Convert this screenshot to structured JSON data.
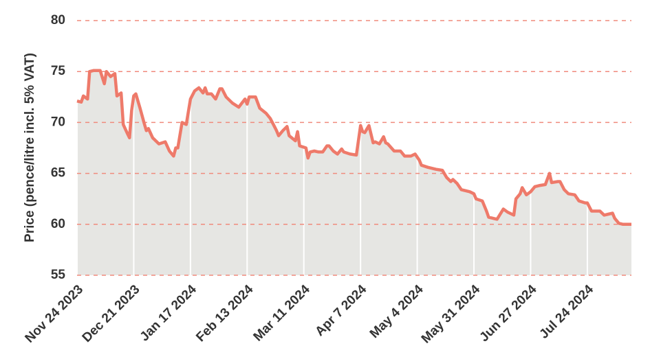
{
  "chart_data": {
    "type": "area",
    "y_label": "Price (pence/litre incl. 5% VAT)",
    "x": [
      "2023-11-24",
      "2023-11-26",
      "2023-11-27",
      "2023-11-29",
      "2023-11-30",
      "2023-12-02",
      "2023-12-05",
      "2023-12-07",
      "2023-12-08",
      "2023-12-10",
      "2023-12-12",
      "2023-12-13",
      "2023-12-15",
      "2023-12-16",
      "2023-12-18",
      "2023-12-19",
      "2023-12-20",
      "2023-12-21",
      "2023-12-22",
      "2023-12-24",
      "2023-12-26",
      "2023-12-27",
      "2023-12-28",
      "2023-12-30",
      "2024-01-02",
      "2024-01-05",
      "2024-01-07",
      "2024-01-09",
      "2024-01-10",
      "2024-01-11",
      "2024-01-13",
      "2024-01-15",
      "2024-01-17",
      "2024-01-19",
      "2024-01-21",
      "2024-01-23",
      "2024-01-24",
      "2024-01-25",
      "2024-01-27",
      "2024-01-29",
      "2024-01-31",
      "2024-02-01",
      "2024-02-03",
      "2024-02-06",
      "2024-02-09",
      "2024-02-12",
      "2024-02-13",
      "2024-02-14",
      "2024-02-17",
      "2024-02-19",
      "2024-02-22",
      "2024-02-24",
      "2024-02-26",
      "2024-02-27",
      "2024-02-28",
      "2024-03-01",
      "2024-03-03",
      "2024-03-04",
      "2024-03-07",
      "2024-03-08",
      "2024-03-09",
      "2024-03-12",
      "2024-03-13",
      "2024-03-14",
      "2024-03-16",
      "2024-03-18",
      "2024-03-20",
      "2024-03-22",
      "2024-03-23",
      "2024-03-25",
      "2024-03-27",
      "2024-03-29",
      "2024-03-30",
      "2024-04-02",
      "2024-04-05",
      "2024-04-07",
      "2024-04-08",
      "2024-04-09",
      "2024-04-11",
      "2024-04-13",
      "2024-04-14",
      "2024-04-16",
      "2024-04-18",
      "2024-04-19",
      "2024-04-20",
      "2024-04-23",
      "2024-04-26",
      "2024-04-28",
      "2024-05-01",
      "2024-05-03",
      "2024-05-05",
      "2024-05-06",
      "2024-05-09",
      "2024-05-13",
      "2024-05-16",
      "2024-05-18",
      "2024-05-20",
      "2024-05-21",
      "2024-05-23",
      "2024-05-25",
      "2024-05-29",
      "2024-05-31",
      "2024-06-01",
      "2024-06-04",
      "2024-06-06",
      "2024-06-07",
      "2024-06-11",
      "2024-06-14",
      "2024-06-16",
      "2024-06-19",
      "2024-06-20",
      "2024-06-22",
      "2024-06-23",
      "2024-06-25",
      "2024-06-27",
      "2024-06-29",
      "2024-07-01",
      "2024-07-04",
      "2024-07-06",
      "2024-07-07",
      "2024-07-10",
      "2024-07-11",
      "2024-07-13",
      "2024-07-15",
      "2024-07-18",
      "2024-07-20",
      "2024-07-23",
      "2024-07-24",
      "2024-07-26",
      "2024-07-30",
      "2024-08-01",
      "2024-08-03",
      "2024-08-05",
      "2024-08-06",
      "2024-08-08",
      "2024-08-10",
      "2024-08-14"
    ],
    "values": [
      72.1,
      72.0,
      72.6,
      72.3,
      75.0,
      75.1,
      75.1,
      73.8,
      75.0,
      74.5,
      74.8,
      72.6,
      72.9,
      69.8,
      68.9,
      68.5,
      71.2,
      72.6,
      72.8,
      71.4,
      69.9,
      69.2,
      69.4,
      68.5,
      67.9,
      68.1,
      67.2,
      66.7,
      67.5,
      67.5,
      70.0,
      69.8,
      72.3,
      73.1,
      73.4,
      72.9,
      73.4,
      72.8,
      72.8,
      72.3,
      73.3,
      73.3,
      72.5,
      71.9,
      71.5,
      72.3,
      71.8,
      72.5,
      72.5,
      71.4,
      70.9,
      70.4,
      69.6,
      69.2,
      68.7,
      69.2,
      69.6,
      68.7,
      68.2,
      69.1,
      67.7,
      67.5,
      66.5,
      67.1,
      67.2,
      67.1,
      67.1,
      67.7,
      67.7,
      67.2,
      66.9,
      67.4,
      67.1,
      66.9,
      66.8,
      69.7,
      69.1,
      69.0,
      69.7,
      68.0,
      68.1,
      67.9,
      68.6,
      68.0,
      67.9,
      67.2,
      67.2,
      66.7,
      66.7,
      66.9,
      66.3,
      65.8,
      65.6,
      65.4,
      65.3,
      64.6,
      64.2,
      64.4,
      64.0,
      63.4,
      63.2,
      63.0,
      62.5,
      62.3,
      61.3,
      60.7,
      60.5,
      61.5,
      61.2,
      60.9,
      62.5,
      63.0,
      63.6,
      62.9,
      63.2,
      63.7,
      63.8,
      63.9,
      65.0,
      64.1,
      64.2,
      64.2,
      63.4,
      63.0,
      62.9,
      62.3,
      62.1,
      62.1,
      61.3,
      61.3,
      60.9,
      61.0,
      61.1,
      60.6,
      60.1,
      60.0,
      60.0
    ],
    "color": "#ee7a6a",
    "fill": "#e6e6e3",
    "xlim": [
      "2023-11-24",
      "2024-08-14"
    ],
    "xticks": [
      {
        "value": "2023-11-24",
        "label": "Nov 24 2023"
      },
      {
        "value": "2023-12-21",
        "label": "Dec 21 2023"
      },
      {
        "value": "2024-01-17",
        "label": "Jan 17 2024"
      },
      {
        "value": "2024-02-13",
        "label": "Feb 13 2024"
      },
      {
        "value": "2024-03-11",
        "label": "Mar 11 2024"
      },
      {
        "value": "2024-04-07",
        "label": "Apr 7 2024"
      },
      {
        "value": "2024-05-04",
        "label": "May 4 2024"
      },
      {
        "value": "2024-05-31",
        "label": "May 31 2024"
      },
      {
        "value": "2024-06-27",
        "label": "Jun 27 2024"
      },
      {
        "value": "2024-07-24",
        "label": "Jul 24 2024"
      }
    ],
    "ylim": [
      55,
      80
    ],
    "yticks": [
      55,
      60,
      65,
      70,
      75,
      80
    ],
    "grid": true
  }
}
